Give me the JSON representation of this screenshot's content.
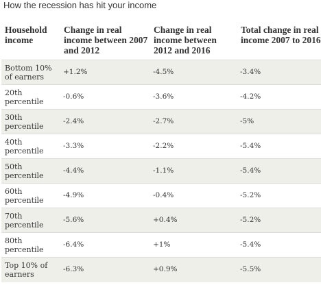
{
  "title": "How the recession has hit your income",
  "chart_data": {
    "type": "table",
    "columns": [
      "Household income",
      "Change in real income between 2007 and 2012",
      "Change in real income between 2012 and 2016",
      "Total change in real income 2007 to 2016"
    ],
    "rows": [
      {
        "group": "Bottom 10% of earners",
        "c1": "+1.2%",
        "c2": "-4.5%",
        "total": "-3.4%"
      },
      {
        "group": "20th percentile",
        "c1": "-0.6%",
        "c2": "-3.6%",
        "total": "-4.2%"
      },
      {
        "group": "30th percentile",
        "c1": "-2.4%",
        "c2": "-2.7%",
        "total": "-5%"
      },
      {
        "group": "40th percentile",
        "c1": "-3.3%",
        "c2": "-2.2%",
        "total": "-5.4%"
      },
      {
        "group": "50th percentile",
        "c1": "-4.4%",
        "c2": "-1.1%",
        "total": "-5.4%"
      },
      {
        "group": "60th percentile",
        "c1": "-4.9%",
        "c2": "-0.4%",
        "total": "-5.2%"
      },
      {
        "group": "70th percentile",
        "c1": "-5.6%",
        "c2": "+0.4%",
        "total": "-5.2%"
      },
      {
        "group": "80th percentile",
        "c1": "-6.4%",
        "c2": "+1%",
        "total": "-5.4%"
      },
      {
        "group": "Top 10% of earners",
        "c1": "-6.3%",
        "c2": "+0.9%",
        "total": "-5.5%"
      }
    ]
  }
}
